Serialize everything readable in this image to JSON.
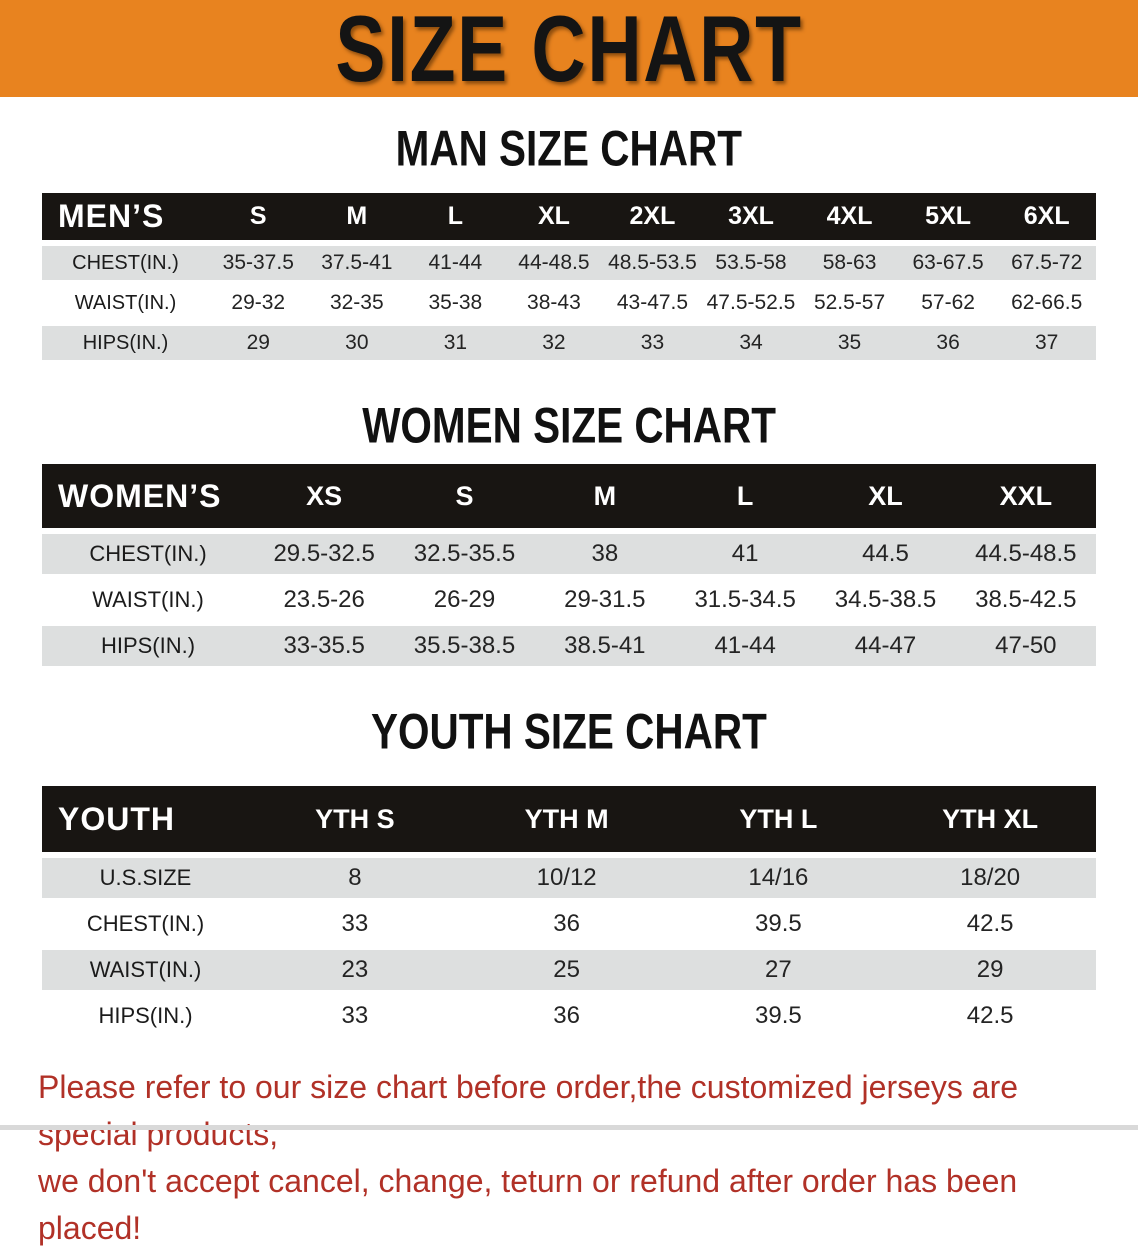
{
  "banner": {
    "title": "SIZE CHART"
  },
  "colors": {
    "banner_bg": "#E8831F",
    "table_header_bg": "#181512",
    "row_gray": "#DDDFDF",
    "footer_red": "#B13127",
    "heading_text": "#111111"
  },
  "men_section": {
    "heading": "MAN SIZE CHART",
    "table": {
      "corner": "MEN’S",
      "sizes": [
        "S",
        "M",
        "L",
        "XL",
        "2XL",
        "3XL",
        "4XL",
        "5XL",
        "6XL"
      ],
      "rows": [
        {
          "label": "CHEST(IN.)",
          "values": [
            "35-37.5",
            "37.5-41",
            "41-44",
            "44-48.5",
            "48.5-53.5",
            "53.5-58",
            "58-63",
            "63-67.5",
            "67.5-72"
          ]
        },
        {
          "label": "WAIST(IN.)",
          "values": [
            "29-32",
            "32-35",
            "35-38",
            "38-43",
            "43-47.5",
            "47.5-52.5",
            "52.5-57",
            "57-62",
            "62-66.5"
          ]
        },
        {
          "label": "HIPS(IN.)",
          "values": [
            "29",
            "30",
            "31",
            "32",
            "33",
            "34",
            "35",
            "36",
            "37"
          ]
        }
      ]
    }
  },
  "women_section": {
    "heading": "WOMEN SIZE CHART",
    "table": {
      "corner": "WOMEN’S",
      "sizes": [
        "XS",
        "S",
        "M",
        "L",
        "XL",
        "XXL"
      ],
      "rows": [
        {
          "label": "CHEST(IN.)",
          "values": [
            "29.5-32.5",
            "32.5-35.5",
            "38",
            "41",
            "44.5",
            "44.5-48.5"
          ]
        },
        {
          "label": "WAIST(IN.)",
          "values": [
            "23.5-26",
            "26-29",
            "29-31.5",
            "31.5-34.5",
            "34.5-38.5",
            "38.5-42.5"
          ]
        },
        {
          "label": "HIPS(IN.)",
          "values": [
            "33-35.5",
            "35.5-38.5",
            "38.5-41",
            "41-44",
            "44-47",
            "47-50"
          ]
        }
      ]
    }
  },
  "youth_section": {
    "heading": "YOUTH SIZE CHART",
    "table": {
      "corner": "YOUTH",
      "sizes": [
        "YTH S",
        "YTH M",
        "YTH L",
        "YTH XL"
      ],
      "rows": [
        {
          "label": "U.S.SIZE",
          "values": [
            "8",
            "10/12",
            "14/16",
            "18/20"
          ]
        },
        {
          "label": "CHEST(IN.)",
          "values": [
            "33",
            "36",
            "39.5",
            "42.5"
          ]
        },
        {
          "label": "WAIST(IN.)",
          "values": [
            "23",
            "25",
            "27",
            "29"
          ]
        },
        {
          "label": "HIPS(IN.)",
          "values": [
            "33",
            "36",
            "39.5",
            "42.5"
          ]
        }
      ]
    }
  },
  "footer": {
    "line1": "Please refer to our size chart before order,the customized jerseys are special products,",
    "line2": "we don't accept cancel, change, teturn or refund after order has been placed!"
  }
}
